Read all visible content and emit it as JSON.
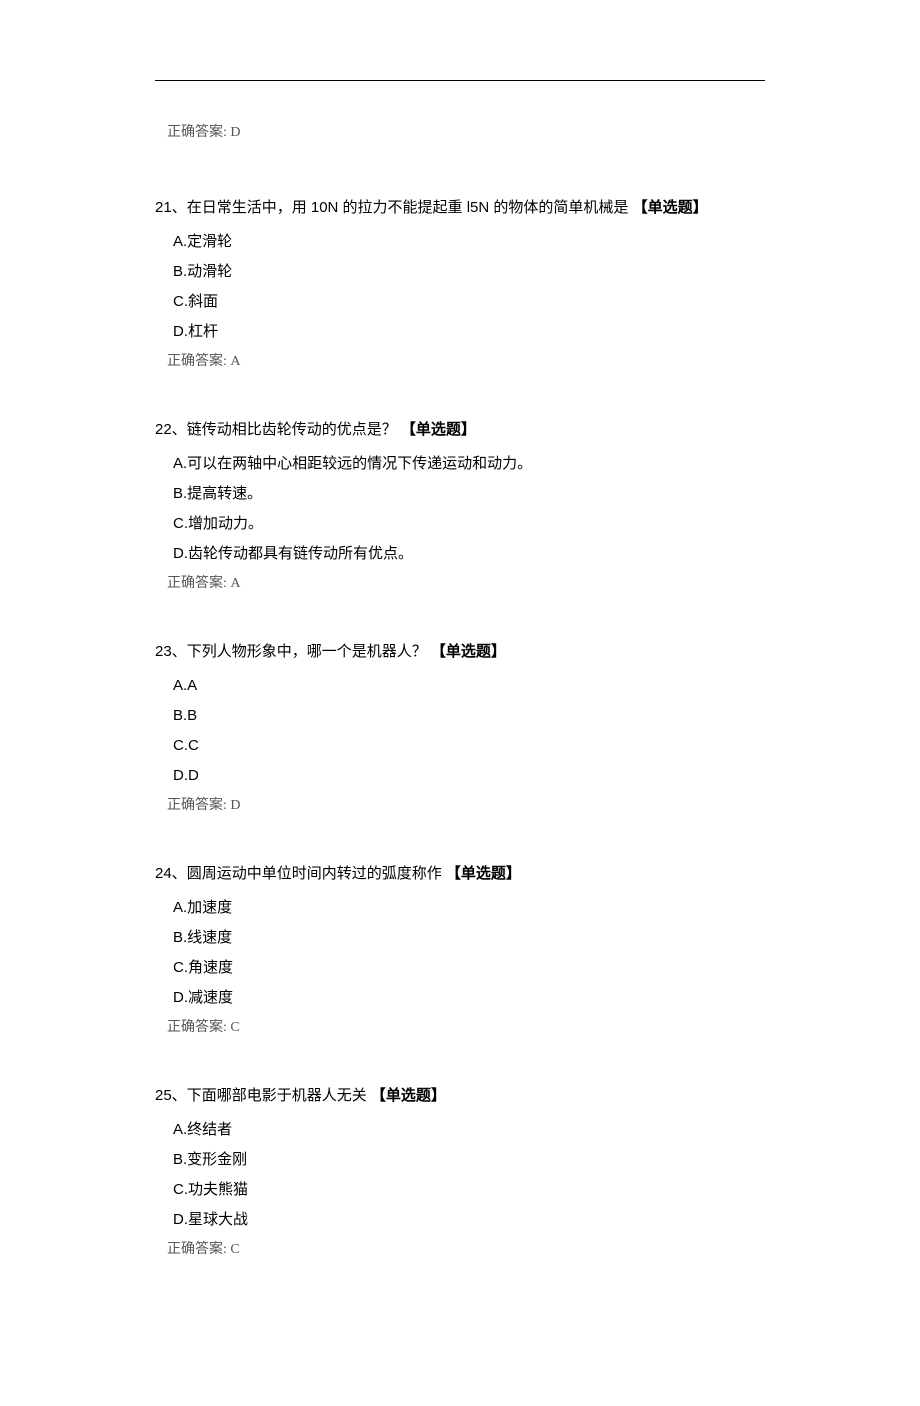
{
  "top_answer": "正确答案: D",
  "questions": [
    {
      "num": "21、",
      "text": "在日常生活中，用 10N 的拉力不能提起重 l5N 的物体的简单机械是 ",
      "type": "【单选题】",
      "options": [
        "A.定滑轮",
        "B.动滑轮",
        "C.斜面",
        "D.杠杆"
      ],
      "answer": "正确答案: A"
    },
    {
      "num": "22、",
      "text": "链传动相比齿轮传动的优点是？ ",
      "type": "【单选题】",
      "options": [
        "A.可以在两轴中心相距较远的情况下传递运动和动力。",
        "B.提高转速。",
        "C.增加动力。",
        "D.齿轮传动都具有链传动所有优点。"
      ],
      "answer": "正确答案: A"
    },
    {
      "num": "23、",
      "text": "下列人物形象中，哪一个是机器人？ ",
      "type": "【单选题】",
      "options": [
        "A.A",
        "B.B",
        "C.C",
        "D.D"
      ],
      "answer": "正确答案: D"
    },
    {
      "num": "24、",
      "text": "圆周运动中单位时间内转过的弧度称作 ",
      "type": "【单选题】",
      "options": [
        "A.加速度",
        "B.线速度",
        "C.角速度",
        "D.减速度"
      ],
      "answer": "正确答案: C"
    },
    {
      "num": "25、",
      "text": "下面哪部电影于机器人无关 ",
      "type": "【单选题】",
      "options": [
        "A.终结者",
        "B.变形金刚",
        "C.功夫熊猫",
        "D.星球大战"
      ],
      "answer": "正确答案: C"
    }
  ]
}
